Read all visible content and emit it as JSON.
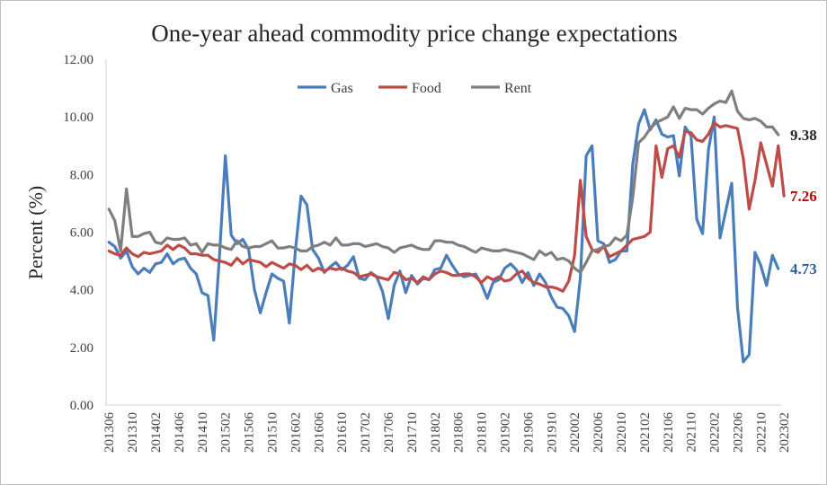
{
  "chart_data": {
    "type": "line",
    "title": "One-year ahead commodity price change expectations",
    "xlabel": "",
    "ylabel": "Percent (%)",
    "ylim": [
      0,
      12
    ],
    "yticks": [
      "0.00",
      "2.00",
      "4.00",
      "6.00",
      "8.00",
      "10.00",
      "12.00"
    ],
    "grid": false,
    "legend_position": "top-center",
    "x_start": "2013-06",
    "x_ticks": [
      "201306",
      "201310",
      "201402",
      "201406",
      "201410",
      "201502",
      "201506",
      "201510",
      "201602",
      "201606",
      "201610",
      "201702",
      "201706",
      "201710",
      "201802",
      "201806",
      "201810",
      "201902",
      "201906",
      "201910",
      "202002",
      "202006",
      "202010",
      "202102",
      "202106",
      "202110",
      "202202",
      "202206",
      "202210",
      "202302"
    ],
    "end_labels": [
      {
        "series": "Rent",
        "text": "9.38",
        "color": "#262626"
      },
      {
        "series": "Food",
        "text": "7.26",
        "color": "#c00000"
      },
      {
        "series": "Gas",
        "text": "4.73",
        "color": "#2e5f96"
      }
    ],
    "series": [
      {
        "name": "Gas",
        "color": "#4a7ebb",
        "values": [
          5.65,
          5.5,
          5.1,
          5.35,
          4.8,
          4.55,
          4.75,
          4.6,
          4.9,
          4.95,
          5.25,
          4.9,
          5.05,
          5.1,
          4.75,
          4.55,
          3.9,
          3.8,
          2.25,
          5.2,
          8.65,
          5.9,
          5.6,
          5.75,
          5.4,
          4.0,
          3.2,
          3.9,
          4.55,
          4.4,
          4.3,
          2.85,
          5.3,
          7.25,
          6.95,
          5.4,
          5.1,
          4.6,
          4.8,
          4.95,
          4.7,
          4.85,
          5.15,
          4.4,
          4.35,
          4.6,
          4.45,
          3.95,
          3.0,
          4.15,
          4.65,
          3.9,
          4.5,
          4.2,
          4.4,
          4.35,
          4.7,
          4.75,
          5.2,
          4.85,
          4.55,
          4.45,
          4.5,
          4.55,
          4.2,
          3.7,
          4.25,
          4.35,
          4.75,
          4.9,
          4.7,
          4.25,
          4.6,
          4.15,
          4.55,
          4.25,
          3.75,
          3.4,
          3.35,
          3.1,
          2.55,
          4.4,
          8.65,
          9.0,
          5.7,
          5.6,
          4.95,
          5.05,
          5.35,
          5.35,
          8.35,
          9.75,
          10.25,
          9.55,
          9.9,
          9.4,
          9.3,
          9.35,
          7.95,
          9.65,
          9.35,
          6.45,
          5.95,
          8.85,
          10.0,
          5.8,
          6.75,
          7.7,
          3.4,
          1.5,
          1.75,
          5.3,
          4.85,
          4.15,
          5.2,
          4.73
        ]
      },
      {
        "name": "Food",
        "color": "#be4b48",
        "values": [
          5.35,
          5.25,
          5.2,
          5.45,
          5.25,
          5.15,
          5.3,
          5.25,
          5.3,
          5.35,
          5.55,
          5.4,
          5.55,
          5.45,
          5.25,
          5.25,
          5.2,
          5.2,
          5.05,
          5.0,
          4.95,
          4.85,
          5.1,
          4.9,
          5.05,
          5.0,
          4.95,
          4.8,
          4.95,
          4.85,
          4.75,
          4.9,
          4.85,
          4.7,
          4.85,
          4.65,
          4.75,
          4.65,
          4.75,
          4.7,
          4.75,
          4.65,
          4.6,
          4.45,
          4.5,
          4.55,
          4.45,
          4.4,
          4.35,
          4.6,
          4.55,
          4.35,
          4.4,
          4.25,
          4.45,
          4.35,
          4.55,
          4.65,
          4.6,
          4.5,
          4.5,
          4.55,
          4.55,
          4.45,
          4.25,
          4.45,
          4.35,
          4.45,
          4.3,
          4.35,
          4.55,
          4.65,
          4.4,
          4.25,
          4.2,
          4.1,
          4.1,
          4.05,
          3.95,
          4.3,
          5.2,
          7.8,
          5.85,
          5.4,
          5.3,
          5.5,
          5.15,
          5.25,
          5.35,
          5.55,
          5.75,
          5.8,
          5.85,
          6.0,
          9.0,
          7.9,
          8.9,
          9.0,
          8.6,
          9.5,
          9.45,
          9.2,
          9.15,
          9.4,
          9.8,
          9.65,
          9.7,
          9.65,
          9.6,
          8.55,
          6.8,
          7.8,
          9.1,
          8.35,
          7.6,
          9.0,
          7.26
        ]
      },
      {
        "name": "Rent",
        "color": "#7f7f7f",
        "values": [
          6.8,
          6.4,
          5.35,
          7.5,
          5.85,
          5.85,
          5.95,
          6.0,
          5.65,
          5.6,
          5.8,
          5.75,
          5.75,
          5.8,
          5.55,
          5.6,
          5.3,
          5.6,
          5.55,
          5.55,
          5.45,
          5.4,
          5.7,
          5.5,
          5.45,
          5.5,
          5.5,
          5.6,
          5.7,
          5.45,
          5.45,
          5.5,
          5.45,
          5.35,
          5.35,
          5.5,
          5.55,
          5.65,
          5.55,
          5.8,
          5.55,
          5.55,
          5.6,
          5.6,
          5.5,
          5.55,
          5.6,
          5.5,
          5.45,
          5.3,
          5.45,
          5.5,
          5.55,
          5.45,
          5.4,
          5.4,
          5.7,
          5.7,
          5.65,
          5.65,
          5.55,
          5.5,
          5.4,
          5.3,
          5.45,
          5.4,
          5.35,
          5.35,
          5.4,
          5.35,
          5.3,
          5.25,
          5.15,
          5.05,
          5.35,
          5.2,
          5.3,
          5.05,
          5.1,
          5.0,
          4.75,
          4.6,
          4.95,
          5.35,
          5.4,
          5.5,
          5.55,
          5.8,
          5.7,
          5.9,
          7.2,
          9.1,
          9.3,
          9.6,
          9.8,
          9.9,
          10.0,
          10.35,
          9.95,
          10.3,
          10.25,
          10.25,
          10.1,
          10.3,
          10.45,
          10.55,
          10.5,
          10.9,
          10.2,
          9.95,
          9.9,
          9.95,
          9.85,
          9.65,
          9.65,
          9.38
        ]
      }
    ]
  }
}
